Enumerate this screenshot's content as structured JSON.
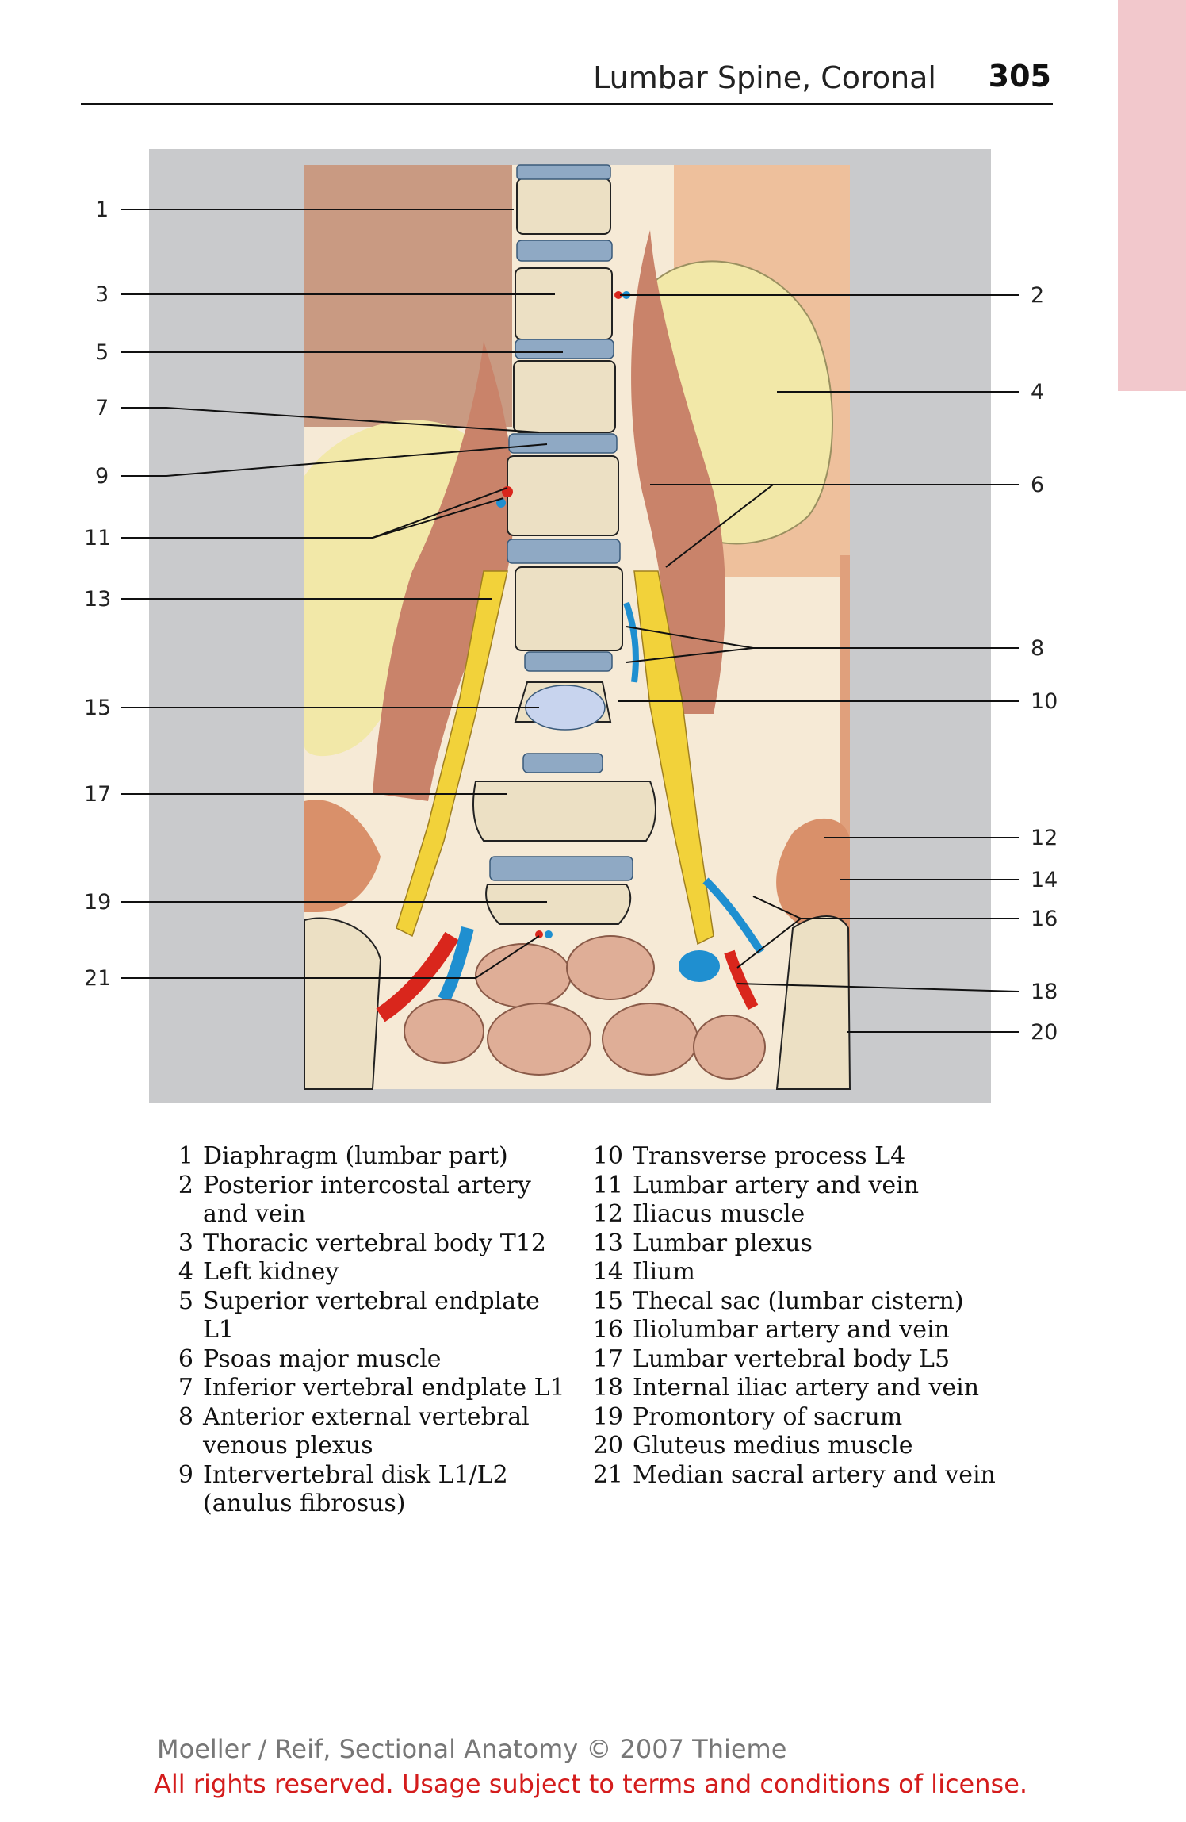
{
  "header": {
    "title": "Lumbar Spine, Coronal",
    "page_number": "305"
  },
  "figure": {
    "left_labels": [
      "1",
      "3",
      "5",
      "7",
      "9",
      "11",
      "13",
      "15",
      "17",
      "19",
      "21"
    ],
    "right_labels": [
      "2",
      "4",
      "6",
      "8",
      "10",
      "12",
      "14",
      "16",
      "18",
      "20"
    ]
  },
  "legend": {
    "left": [
      {
        "num": "1",
        "text": "Diaphragm (lumbar part)"
      },
      {
        "num": "2",
        "text": "Posterior intercostal artery and vein"
      },
      {
        "num": "3",
        "text": "Thoracic vertebral body T12"
      },
      {
        "num": "4",
        "text": "Left kidney"
      },
      {
        "num": "5",
        "text": "Superior vertebral endplate L1"
      },
      {
        "num": "6",
        "text": "Psoas major muscle"
      },
      {
        "num": "7",
        "text": "Inferior vertebral endplate L1"
      },
      {
        "num": "8",
        "text": "Anterior external vertebral venous plexus"
      },
      {
        "num": "9",
        "text": "Intervertebral disk L1/L2 (anulus fibrosus)"
      }
    ],
    "right": [
      {
        "num": "10",
        "text": "Transverse process L4"
      },
      {
        "num": "11",
        "text": "Lumbar artery and vein"
      },
      {
        "num": "12",
        "text": "Iliacus muscle"
      },
      {
        "num": "13",
        "text": "Lumbar plexus"
      },
      {
        "num": "14",
        "text": "Ilium"
      },
      {
        "num": "15",
        "text": "Thecal sac (lumbar cistern)"
      },
      {
        "num": "16",
        "text": "Iliolumbar artery and vein"
      },
      {
        "num": "17",
        "text": "Lumbar vertebral body L5"
      },
      {
        "num": "18",
        "text": "Internal iliac artery and vein"
      },
      {
        "num": "19",
        "text": "Promontory of sacrum"
      },
      {
        "num": "20",
        "text": "Gluteus medius muscle"
      },
      {
        "num": "21",
        "text": "Median sacral artery and vein"
      }
    ]
  },
  "footer": {
    "credit": "Moeller / Reif, Sectional Anatomy © 2007 Thieme",
    "rights": "All rights reserved. Usage subject to terms and conditions of license."
  },
  "colors": {
    "panel_gray": "#c9cacc",
    "muscle": "#d9906a",
    "kidney": "#f2e8a8",
    "bone": "#ece0c4",
    "disk": "#8fa9c4",
    "nerve": "#f2d23a",
    "artery": "#d9261c",
    "vein": "#1f8fd0",
    "bowel": "#dfae97",
    "thumb_tab": "#f2c8cc"
  }
}
